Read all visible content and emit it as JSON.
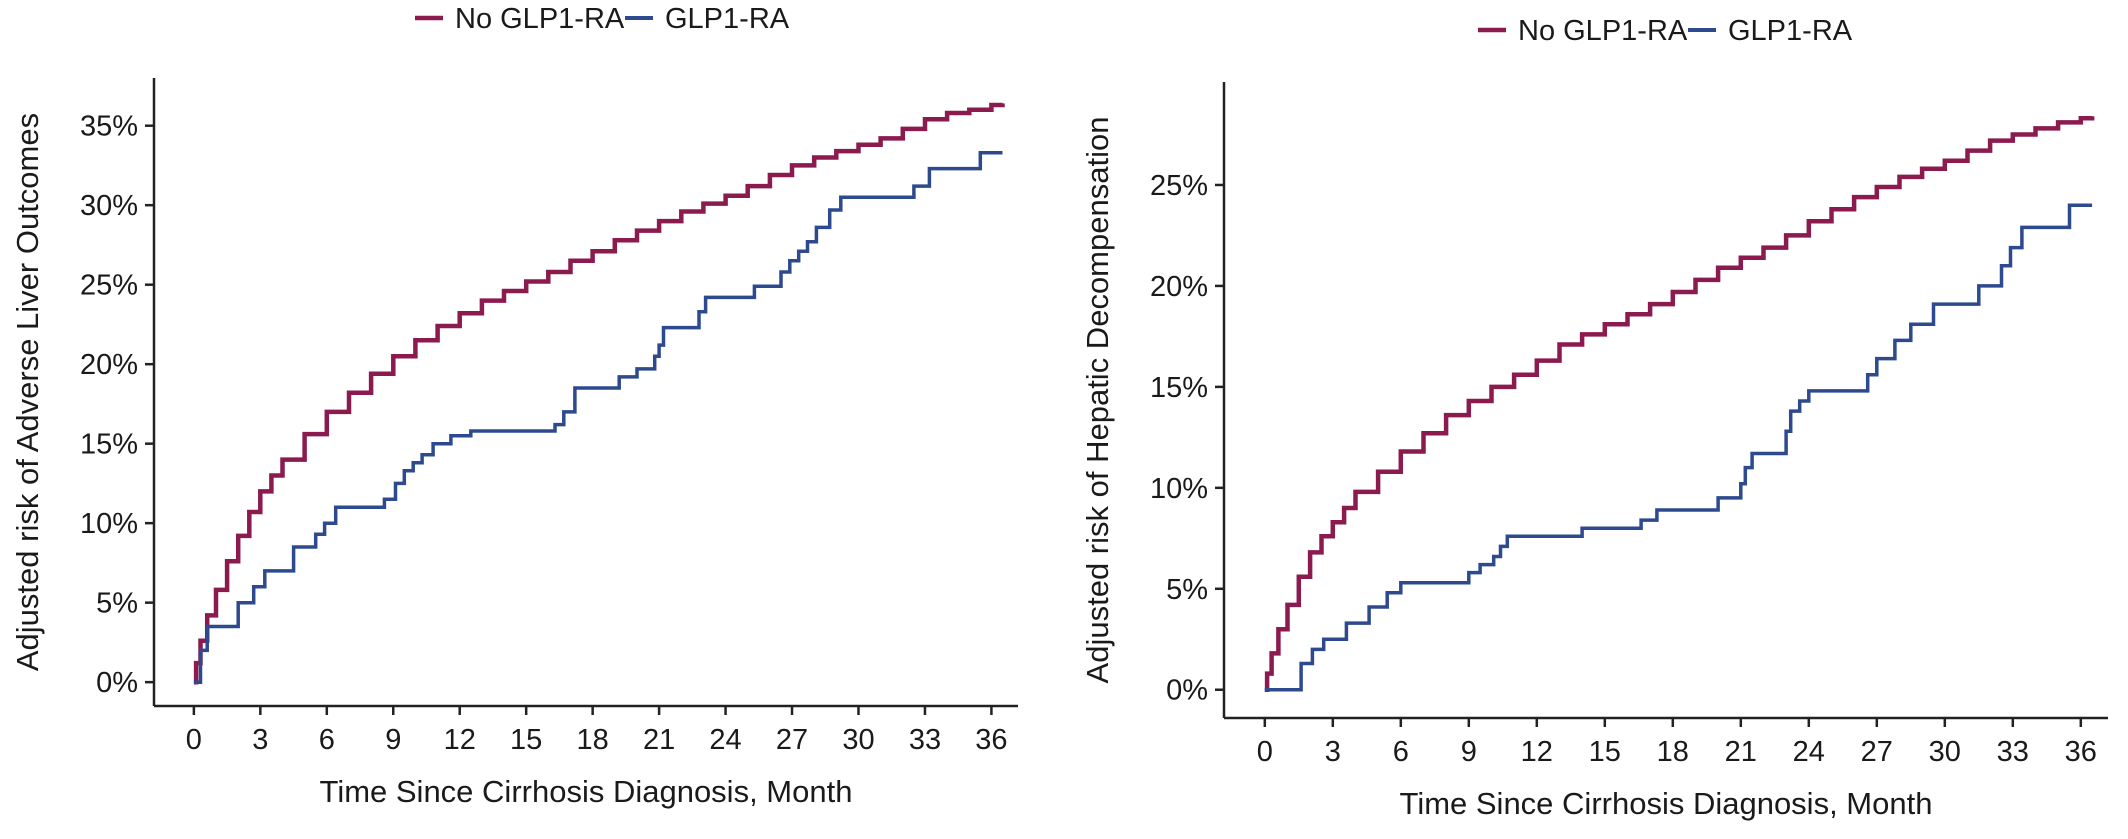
{
  "chart_data": [
    {
      "type": "line",
      "step": true,
      "xlabel": "Time Since Cirrhosis Diagnosis, Month",
      "ylabel": "Adjusted risk of Adverse Liver Outcomes",
      "xticks": [
        0,
        3,
        6,
        9,
        12,
        15,
        18,
        21,
        24,
        27,
        30,
        33,
        36
      ],
      "xtick_labels": [
        "0",
        "3",
        "6",
        "9",
        "12",
        "15",
        "18",
        "21",
        "24",
        "27",
        "30",
        "33",
        "36"
      ],
      "yticks": [
        0,
        5,
        10,
        15,
        20,
        25,
        30,
        35
      ],
      "ytick_labels": [
        "0%",
        "5%",
        "10%",
        "15%",
        "20%",
        "25%",
        "30%",
        "35%"
      ],
      "xlim": [
        -1.8,
        37.2
      ],
      "ylim": [
        -1.5,
        38
      ],
      "legend": "top",
      "grid": false,
      "series": [
        {
          "name": "No GLP1-RA",
          "color": "#8b1a4f",
          "x": [
            0,
            0.1,
            0.3,
            0.6,
            1,
            1.5,
            2,
            2.5,
            3,
            3.5,
            4,
            5,
            6,
            7,
            8,
            9,
            10,
            11,
            12,
            13,
            14,
            15,
            16,
            17,
            18,
            19,
            20,
            21,
            22,
            23,
            24,
            25,
            26,
            27,
            28,
            29,
            30,
            31,
            32,
            33,
            34,
            35,
            36,
            36.5
          ],
          "values": [
            0,
            1.2,
            2.6,
            4.2,
            5.8,
            7.6,
            9.2,
            10.7,
            12.0,
            13.0,
            14.0,
            15.6,
            17.0,
            18.2,
            19.4,
            20.5,
            21.5,
            22.4,
            23.2,
            24.0,
            24.6,
            25.2,
            25.8,
            26.5,
            27.1,
            27.8,
            28.4,
            29.0,
            29.6,
            30.1,
            30.6,
            31.2,
            31.9,
            32.5,
            33.0,
            33.4,
            33.8,
            34.2,
            34.8,
            35.4,
            35.8,
            36.0,
            36.3,
            36.4
          ]
        },
        {
          "name": "GLP1-RA",
          "color": "#2e4a8e",
          "x": [
            0,
            0.3,
            0.6,
            2.0,
            2.7,
            3.2,
            4.5,
            5.5,
            5.9,
            6.4,
            8.6,
            9.1,
            9.5,
            9.9,
            10.3,
            10.8,
            11.6,
            12.5,
            13.6,
            16.3,
            16.7,
            17.2,
            19.2,
            20.0,
            20.8,
            21.0,
            21.2,
            22.8,
            23.1,
            25.3,
            26.5,
            26.9,
            27.3,
            27.7,
            28.1,
            28.7,
            29.2,
            32.5,
            33.2,
            35.5,
            36.5
          ],
          "values": [
            0,
            2.0,
            3.5,
            5.0,
            6.0,
            7.0,
            8.5,
            9.3,
            10.0,
            11.0,
            11.5,
            12.5,
            13.3,
            13.8,
            14.3,
            15.0,
            15.5,
            15.8,
            15.8,
            16.2,
            17.0,
            18.5,
            19.2,
            19.7,
            20.5,
            21.2,
            22.3,
            23.3,
            24.2,
            24.9,
            25.8,
            26.5,
            27.1,
            27.7,
            28.6,
            29.7,
            30.5,
            31.2,
            32.3,
            33.3,
            33.3
          ]
        }
      ]
    },
    {
      "type": "line",
      "step": true,
      "xlabel": "Time Since Cirrhosis Diagnosis, Month",
      "ylabel": "Adjusted risk of Hepatic Decompensation",
      "xticks": [
        0,
        3,
        6,
        9,
        12,
        15,
        18,
        21,
        24,
        27,
        30,
        33,
        36
      ],
      "xtick_labels": [
        "0",
        "3",
        "6",
        "9",
        "12",
        "15",
        "18",
        "21",
        "24",
        "27",
        "30",
        "33",
        "36"
      ],
      "yticks": [
        0,
        5,
        10,
        15,
        20,
        25
      ],
      "ytick_labels": [
        "0%",
        "5%",
        "10%",
        "15%",
        "20%",
        "25%"
      ],
      "xlim": [
        -1.8,
        37.2
      ],
      "ylim": [
        -1.4,
        30.1
      ],
      "legend": "top",
      "grid": false,
      "series": [
        {
          "name": "No GLP1-RA",
          "color": "#8b1a4f",
          "x": [
            0,
            0.1,
            0.3,
            0.6,
            1,
            1.5,
            2,
            2.5,
            3,
            3.5,
            4,
            5,
            6,
            7,
            8,
            9,
            10,
            11,
            12,
            13,
            14,
            15,
            16,
            17,
            18,
            19,
            20,
            21,
            22,
            23,
            24,
            25,
            26,
            27,
            28,
            29,
            30,
            31,
            32,
            33,
            34,
            35,
            36,
            36.5
          ],
          "values": [
            0,
            0.8,
            1.8,
            3.0,
            4.2,
            5.6,
            6.8,
            7.6,
            8.3,
            9.0,
            9.8,
            10.8,
            11.8,
            12.7,
            13.6,
            14.3,
            15.0,
            15.6,
            16.3,
            17.1,
            17.6,
            18.1,
            18.6,
            19.1,
            19.7,
            20.3,
            20.9,
            21.4,
            21.9,
            22.5,
            23.2,
            23.8,
            24.4,
            24.9,
            25.4,
            25.8,
            26.2,
            26.7,
            27.2,
            27.5,
            27.8,
            28.1,
            28.3,
            28.4
          ]
        },
        {
          "name": "GLP1-RA",
          "color": "#2e4a8e",
          "x": [
            0,
            1.6,
            2.1,
            2.6,
            3.6,
            4.6,
            5.4,
            6.0,
            9.0,
            9.5,
            10.1,
            10.4,
            10.7,
            11.3,
            14.0,
            16.6,
            17.3,
            20.0,
            21.0,
            21.2,
            21.5,
            23.0,
            23.2,
            23.6,
            24.0,
            26.6,
            27.0,
            27.8,
            28.5,
            29.5,
            31.5,
            32.5,
            32.9,
            33.4,
            35.5,
            36.5
          ],
          "values": [
            0,
            1.3,
            2.0,
            2.5,
            3.3,
            4.1,
            4.8,
            5.3,
            5.8,
            6.2,
            6.6,
            7.1,
            7.6,
            7.6,
            8.0,
            8.4,
            8.9,
            9.5,
            10.2,
            11.0,
            11.7,
            12.8,
            13.8,
            14.3,
            14.8,
            15.6,
            16.4,
            17.3,
            18.1,
            19.1,
            20.0,
            21.0,
            21.9,
            22.9,
            24.0,
            24.0
          ]
        }
      ]
    }
  ]
}
